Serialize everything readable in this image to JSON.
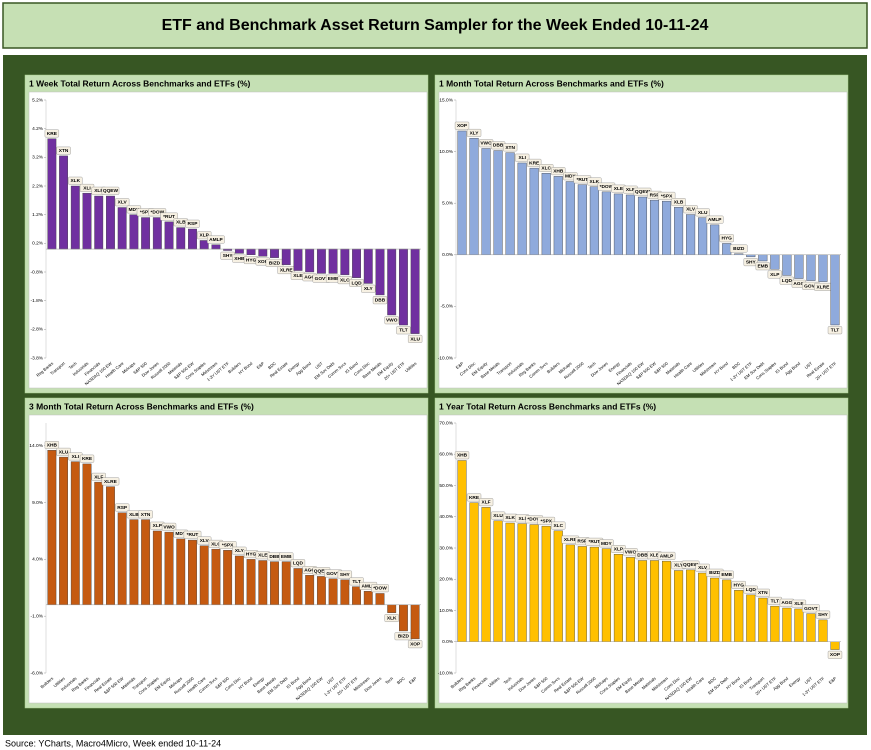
{
  "header": {
    "title": "ETF and Benchmark Asset Return Sampler for the Week Ended 10-11-24"
  },
  "chart_data": [
    {
      "type": "bar",
      "title": "1 Week Total Return Across Benchmarks and ETFs (%)",
      "color": "#7030a0",
      "categories": [
        "Reg Banks",
        "Transport",
        "Tech",
        "Industrials",
        "Financials",
        "NASDAQ 100 EW",
        "Health Care",
        "Midcaps",
        "S&P 500",
        "Dow Jones",
        "Russell 2000",
        "Materials",
        "S&P 500 EW",
        "Cons Staples",
        "Midstream",
        "1-3Y UST ETF",
        "Builders",
        "HY Bond",
        "E&P",
        "BDC",
        "Real Estate",
        "Energy",
        "Agg Bond",
        "UST",
        "EM Sov Debt",
        "Comm Svcs",
        "IG Bond",
        "Cons Disc",
        "Base Metals",
        "EM Equity",
        "20+ UST ETF",
        "Utilities"
      ],
      "tickers": [
        "KRE",
        "XTN",
        "XLK",
        "XLI",
        "XLF",
        "QQEW",
        "XLV",
        "MDY",
        "*SPX",
        "*DOW",
        "*RUT",
        "XLB",
        "RSP",
        "XLP",
        "AMLP",
        "SHY",
        "XHB",
        "HYG",
        "XOP",
        "BIZD",
        "XLRE",
        "XLE",
        "AGG",
        "GOVT",
        "EMB",
        "XLC",
        "LQD",
        "XLY",
        "DBB",
        "VWO",
        "TLT",
        "XLU"
      ],
      "values": [
        3.85,
        3.25,
        2.2,
        1.95,
        1.85,
        1.85,
        1.45,
        1.2,
        1.1,
        1.1,
        0.95,
        0.75,
        0.7,
        0.3,
        0.15,
        -0.05,
        -0.15,
        -0.2,
        -0.25,
        -0.3,
        -0.55,
        -0.75,
        -0.8,
        -0.85,
        -0.85,
        -0.9,
        -1.0,
        -1.2,
        -1.6,
        -2.3,
        -2.65,
        -2.95
      ],
      "ylim": [
        -3.8,
        5.2
      ],
      "yticks": [
        {
          "value": -3.8,
          "label": "-3.8%"
        },
        {
          "value": -2.8,
          "label": "-2.8%"
        },
        {
          "value": -1.8,
          "label": "-1.8%"
        },
        {
          "value": -0.8,
          "label": "-0.8%"
        },
        {
          "value": 0.2,
          "label": "0.2%"
        },
        {
          "value": 1.2,
          "label": "1.2%"
        },
        {
          "value": 2.2,
          "label": "2.2%"
        },
        {
          "value": 3.2,
          "label": "3.2%"
        },
        {
          "value": 4.2,
          "label": "4.2%"
        },
        {
          "value": 5.2,
          "label": "5.2%"
        }
      ]
    },
    {
      "type": "bar",
      "title": "1 Month Total Return Across Benchmarks and ETFs (%)",
      "color": "#8faadc",
      "categories": [
        "E&P",
        "Cons Disc",
        "EM Equity",
        "Base Metals",
        "Transport",
        "Industrials",
        "Reg Banks",
        "Comm Svcs",
        "Builders",
        "Midcaps",
        "Russell 2000",
        "Tech",
        "Dow Jones",
        "Energy",
        "Financials",
        "NASDAQ 100 EW",
        "S&P 500 EW",
        "S&P 500",
        "Materials",
        "Health Care",
        "Utilities",
        "Midstream",
        "HY Bond",
        "BDC",
        "1-3Y UST ETF",
        "EM Sov Debt",
        "Cons Staples",
        "IG Bond",
        "Agg Bond",
        "UST",
        "Real Estate",
        "20+ UST ETF"
      ],
      "tickers": [
        "XOP",
        "XLY",
        "VWO",
        "DBB",
        "XTN",
        "XLI",
        "KRE",
        "XLC",
        "XHB",
        "MDY",
        "*RUT",
        "XLK",
        "*DOW",
        "XLE",
        "XLF",
        "QQEW",
        "RSP",
        "*SPX",
        "XLB",
        "XLV",
        "XLU",
        "AMLP",
        "HYG",
        "BIZD",
        "SHY",
        "EMB",
        "XLP",
        "LQD",
        "AGG",
        "GOVT",
        "XLRE",
        "TLT"
      ],
      "values": [
        12.0,
        11.3,
        10.3,
        10.1,
        9.9,
        8.9,
        8.4,
        7.9,
        7.6,
        7.1,
        6.8,
        6.6,
        6.1,
        5.9,
        5.8,
        5.6,
        5.3,
        5.2,
        4.6,
        3.9,
        3.6,
        2.9,
        1.1,
        0.1,
        -0.2,
        -0.6,
        -1.4,
        -2.0,
        -2.3,
        -2.5,
        -2.6,
        -6.8
      ],
      "ylim": [
        -10,
        15
      ],
      "yticks": [
        {
          "value": -10,
          "label": "-10.0%"
        },
        {
          "value": -5,
          "label": "-5.0%"
        },
        {
          "value": 0,
          "label": "0.0%"
        },
        {
          "value": 5,
          "label": "5.0%"
        },
        {
          "value": 10,
          "label": "10.0%"
        },
        {
          "value": 15,
          "label": "15.0%"
        }
      ]
    },
    {
      "type": "bar",
      "title": "3 Month Total Return Across Benchmarks and ETFs (%)",
      "color": "#c55a11",
      "categories": [
        "Builders",
        "Utilities",
        "Industrials",
        "Reg Banks",
        "Financials",
        "Real Estate",
        "S&P 500 EW",
        "Materials",
        "Transport",
        "Cons Staples",
        "EM Equity",
        "Midcaps",
        "Russell 2000",
        "Health Care",
        "Comm Svcs",
        "S&P 500",
        "Cons Disc",
        "HY Bond",
        "Energy",
        "Base Metals",
        "EM Sov Debt",
        "IG Bond",
        "Agg Bond",
        "NASDAQ 100 EW",
        "UST",
        "1-3Y UST ETF",
        "20+ UST ETF",
        "Midstream",
        "Dow Jones",
        "Tech",
        "BDC",
        "E&P"
      ],
      "tickers": [
        "XHB",
        "XLU",
        "XLI",
        "KRE",
        "XLF",
        "XLRE",
        "RSP",
        "XLB",
        "XTN",
        "XLP",
        "VWO",
        "MDY",
        "*RUT",
        "XLV",
        "XLC",
        "*SPX",
        "XLY",
        "HYG",
        "XLE",
        "DBB",
        "EMB",
        "LQD",
        "AGG",
        "QQEW",
        "GOVT",
        "SHY",
        "TLT",
        "AMLP",
        "*DOW",
        "XLK",
        "BIZD",
        "XOP"
      ],
      "values": [
        13.6,
        13.0,
        12.6,
        12.4,
        10.8,
        10.4,
        8.1,
        7.5,
        7.5,
        6.5,
        6.4,
        5.8,
        5.7,
        5.2,
        4.9,
        4.8,
        4.3,
        4.0,
        3.9,
        3.8,
        3.8,
        3.2,
        2.6,
        2.5,
        2.3,
        2.2,
        1.6,
        1.2,
        1.0,
        -0.7,
        -2.3,
        -3.0
      ],
      "ylim": [
        -6,
        16
      ],
      "yticks": [
        {
          "value": -6,
          "label": "-6.0%"
        },
        {
          "value": -1,
          "label": "-1.0%"
        },
        {
          "value": 4,
          "label": "4.0%"
        },
        {
          "value": 9,
          "label": "9.0%"
        },
        {
          "value": 14,
          "label": "14.0%"
        }
      ]
    },
    {
      "type": "bar",
      "title": "1 Year Total Return Across Benchmarks and ETFs (%)",
      "color": "#ffc000",
      "categories": [
        "Builders",
        "Reg Banks",
        "Financials",
        "Utilities",
        "Tech",
        "Industrials",
        "Dow Jones",
        "S&P 500",
        "Comm Svcs",
        "Real Estate",
        "S&P 500 EW",
        "Russell 2000",
        "Midcaps",
        "Cons Staples",
        "EM Equity",
        "Base Metals",
        "Materials",
        "Midstream",
        "Cons Disc",
        "NASDAQ 100 EW",
        "Health Care",
        "BDC",
        "EM Sov Debt",
        "HY Bond",
        "IG Bond",
        "Transport",
        "20+ UST ETF",
        "Agg Bond",
        "Energy",
        "UST",
        "1-3Y UST ETF",
        "E&P"
      ],
      "tickers": [
        "XHB",
        "KRE",
        "XLF",
        "XLU",
        "XLK",
        "XLI",
        "*DOW",
        "*SPX",
        "XLC",
        "XLRE",
        "RSP",
        "*RUT",
        "MDY",
        "XLP",
        "VWO",
        "DBB",
        "XLB",
        "AMLP",
        "XLY",
        "QQEW",
        "XLV",
        "BIZD",
        "EMB",
        "HYG",
        "LQD",
        "XTN",
        "TLT",
        "AGG",
        "XLE",
        "GOVT",
        "SHY",
        "XOP"
      ],
      "values": [
        58,
        44.5,
        43,
        38.7,
        38,
        37.8,
        37.5,
        37,
        35.5,
        31,
        30.5,
        30.3,
        29.8,
        28,
        27,
        26,
        26,
        25.8,
        22.8,
        23,
        22,
        20.4,
        19.8,
        16.5,
        15,
        14,
        11.4,
        10.8,
        10.5,
        9,
        7,
        -2.5
      ],
      "ylim": [
        -10,
        70
      ],
      "yticks": [
        {
          "value": -10,
          "label": "-10.0%"
        },
        {
          "value": 0,
          "label": "0.0%"
        },
        {
          "value": 10,
          "label": "10.0%"
        },
        {
          "value": 20,
          "label": "20.0%"
        },
        {
          "value": 30,
          "label": "30.0%"
        },
        {
          "value": 40,
          "label": "40.0%"
        },
        {
          "value": 50,
          "label": "50.0%"
        },
        {
          "value": 60,
          "label": "60.0%"
        },
        {
          "value": 70,
          "label": "70.0%"
        }
      ]
    }
  ],
  "footer": {
    "source": "Source: YCharts, Macro4Micro, Week ended 10-11-24"
  }
}
